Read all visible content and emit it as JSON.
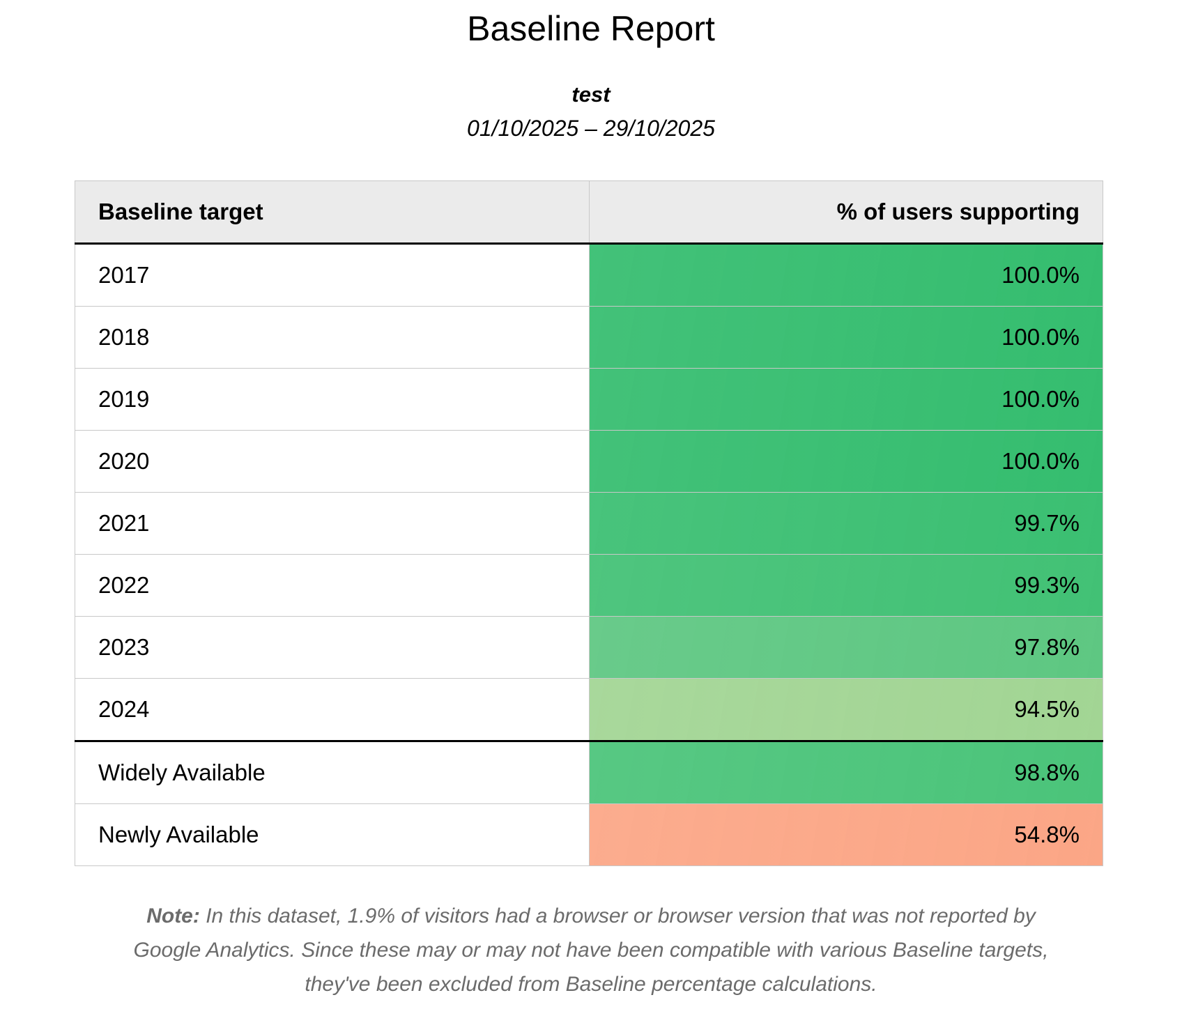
{
  "title": "Baseline Report",
  "subtitle": "test",
  "date_range": "01/10/2025 – 29/10/2025",
  "table": {
    "headers": [
      "Baseline target",
      "% of users supporting"
    ],
    "rows": [
      {
        "target": "2017",
        "value": "100.0%",
        "color": "#35bd6f"
      },
      {
        "target": "2018",
        "value": "100.0%",
        "color": "#35bd6f"
      },
      {
        "target": "2019",
        "value": "100.0%",
        "color": "#35bd6f"
      },
      {
        "target": "2020",
        "value": "100.0%",
        "color": "#35bd6f"
      },
      {
        "target": "2021",
        "value": "99.7%",
        "color": "#3bbf72"
      },
      {
        "target": "2022",
        "value": "99.3%",
        "color": "#42c175"
      },
      {
        "target": "2023",
        "value": "97.8%",
        "color": "#5ec782"
      },
      {
        "target": "2024",
        "value": "94.5%",
        "color": "#a2d594"
      },
      {
        "target": "Widely Available",
        "value": "98.8%",
        "color": "#4bc47a"
      },
      {
        "target": "Newly Available",
        "value": "54.8%",
        "color": "#fba686"
      }
    ]
  },
  "note": {
    "label": "Note:",
    "text": " In this dataset, 1.9% of visitors had a browser or browser version that was not reported by Google Analytics. Since these may or may not have been compatible with various Baseline targets, they've been excluded from Baseline percentage calculations."
  }
}
